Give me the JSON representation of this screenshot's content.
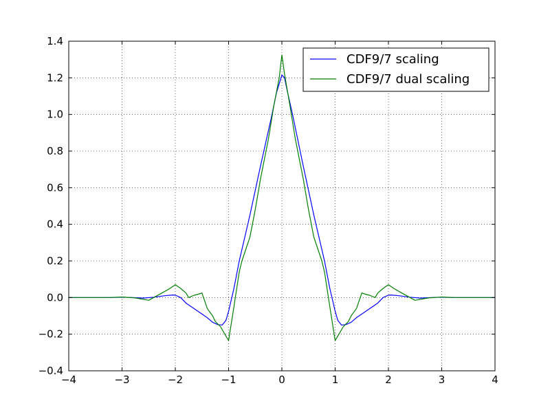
{
  "chart_data": {
    "type": "line",
    "title": "",
    "xlabel": "",
    "ylabel": "",
    "xlim": [
      -4,
      4
    ],
    "ylim": [
      -0.4,
      1.4
    ],
    "x_ticks": [
      -4,
      -3,
      -2,
      -1,
      0,
      1,
      2,
      3,
      4
    ],
    "x_tick_labels": [
      "−4",
      "−3",
      "−2",
      "−1",
      "0",
      "1",
      "2",
      "3",
      "4"
    ],
    "y_ticks": [
      -0.4,
      -0.2,
      0.0,
      0.2,
      0.4,
      0.6,
      0.8,
      1.0,
      1.2,
      1.4
    ],
    "y_tick_labels": [
      "−0.4",
      "−0.2",
      "0.0",
      "0.2",
      "0.4",
      "0.6",
      "0.8",
      "1.0",
      "1.2",
      "1.4"
    ],
    "grid": true,
    "legend_position": "top-right",
    "series": [
      {
        "name": "CDF9/7 scaling",
        "color": "#0000ff",
        "points": [
          [
            -4.0,
            0.0
          ],
          [
            -3.5,
            0.0
          ],
          [
            -3.2,
            0.0
          ],
          [
            -3.0,
            0.002
          ],
          [
            -2.8,
            0.0
          ],
          [
            -2.6,
            -0.003
          ],
          [
            -2.4,
            0.002
          ],
          [
            -2.2,
            0.01
          ],
          [
            -2.05,
            0.014
          ],
          [
            -2.0,
            0.013
          ],
          [
            -1.9,
            0.0
          ],
          [
            -1.8,
            -0.03
          ],
          [
            -1.6,
            -0.07
          ],
          [
            -1.4,
            -0.11
          ],
          [
            -1.3,
            -0.135
          ],
          [
            -1.2,
            -0.148
          ],
          [
            -1.12,
            -0.15
          ],
          [
            -1.05,
            -0.125
          ],
          [
            -1.0,
            -0.075
          ],
          [
            -0.9,
            0.05
          ],
          [
            -0.8,
            0.2
          ],
          [
            -0.6,
            0.45
          ],
          [
            -0.4,
            0.72
          ],
          [
            -0.2,
            0.98
          ],
          [
            -0.1,
            1.12
          ],
          [
            0.0,
            1.215
          ],
          [
            0.05,
            1.2
          ],
          [
            0.1,
            1.13
          ],
          [
            0.2,
            1.0
          ],
          [
            0.4,
            0.72
          ],
          [
            0.6,
            0.45
          ],
          [
            0.8,
            0.2
          ],
          [
            0.9,
            0.05
          ],
          [
            1.0,
            -0.075
          ],
          [
            1.05,
            -0.125
          ],
          [
            1.12,
            -0.15
          ],
          [
            1.2,
            -0.148
          ],
          [
            1.3,
            -0.135
          ],
          [
            1.4,
            -0.11
          ],
          [
            1.6,
            -0.07
          ],
          [
            1.8,
            -0.03
          ],
          [
            1.9,
            0.0
          ],
          [
            2.0,
            0.013
          ],
          [
            2.05,
            0.014
          ],
          [
            2.2,
            0.01
          ],
          [
            2.4,
            0.002
          ],
          [
            2.6,
            -0.003
          ],
          [
            2.8,
            0.0
          ],
          [
            3.0,
            0.002
          ],
          [
            3.2,
            0.0
          ],
          [
            3.5,
            0.0
          ],
          [
            4.0,
            0.0
          ]
        ]
      },
      {
        "name": "CDF9/7 dual scaling",
        "color": "#007f00",
        "points": [
          [
            -4.0,
            0.0
          ],
          [
            -3.5,
            0.0
          ],
          [
            -3.25,
            0.0
          ],
          [
            -3.0,
            0.003
          ],
          [
            -2.75,
            -0.002
          ],
          [
            -2.5,
            -0.015
          ],
          [
            -2.25,
            0.025
          ],
          [
            -2.1,
            0.05
          ],
          [
            -2.0,
            0.07
          ],
          [
            -1.9,
            0.05
          ],
          [
            -1.8,
            0.025
          ],
          [
            -1.75,
            0.0
          ],
          [
            -1.65,
            0.012
          ],
          [
            -1.55,
            0.02
          ],
          [
            -1.5,
            0.025
          ],
          [
            -1.4,
            -0.06
          ],
          [
            -1.3,
            -0.1
          ],
          [
            -1.25,
            -0.13
          ],
          [
            -1.15,
            -0.16
          ],
          [
            -1.07,
            -0.2
          ],
          [
            -1.0,
            -0.235
          ],
          [
            -0.9,
            -0.05
          ],
          [
            -0.8,
            0.14
          ],
          [
            -0.75,
            0.2
          ],
          [
            -0.6,
            0.33
          ],
          [
            -0.5,
            0.48
          ],
          [
            -0.4,
            0.65
          ],
          [
            -0.25,
            0.87
          ],
          [
            -0.15,
            1.05
          ],
          [
            -0.05,
            1.2
          ],
          [
            0.0,
            1.325
          ],
          [
            0.05,
            1.22
          ],
          [
            0.15,
            1.05
          ],
          [
            0.25,
            0.87
          ],
          [
            0.4,
            0.65
          ],
          [
            0.5,
            0.48
          ],
          [
            0.6,
            0.33
          ],
          [
            0.75,
            0.2
          ],
          [
            0.8,
            0.14
          ],
          [
            0.9,
            -0.05
          ],
          [
            1.0,
            -0.235
          ],
          [
            1.07,
            -0.2
          ],
          [
            1.15,
            -0.16
          ],
          [
            1.25,
            -0.13
          ],
          [
            1.3,
            -0.1
          ],
          [
            1.4,
            -0.06
          ],
          [
            1.5,
            0.025
          ],
          [
            1.55,
            0.02
          ],
          [
            1.65,
            0.012
          ],
          [
            1.75,
            0.0
          ],
          [
            1.8,
            0.025
          ],
          [
            1.9,
            0.05
          ],
          [
            2.0,
            0.07
          ],
          [
            2.1,
            0.05
          ],
          [
            2.25,
            0.025
          ],
          [
            2.5,
            -0.015
          ],
          [
            2.75,
            -0.002
          ],
          [
            3.0,
            0.003
          ],
          [
            3.25,
            0.0
          ],
          [
            3.5,
            0.0
          ],
          [
            4.0,
            0.0
          ]
        ]
      }
    ]
  }
}
